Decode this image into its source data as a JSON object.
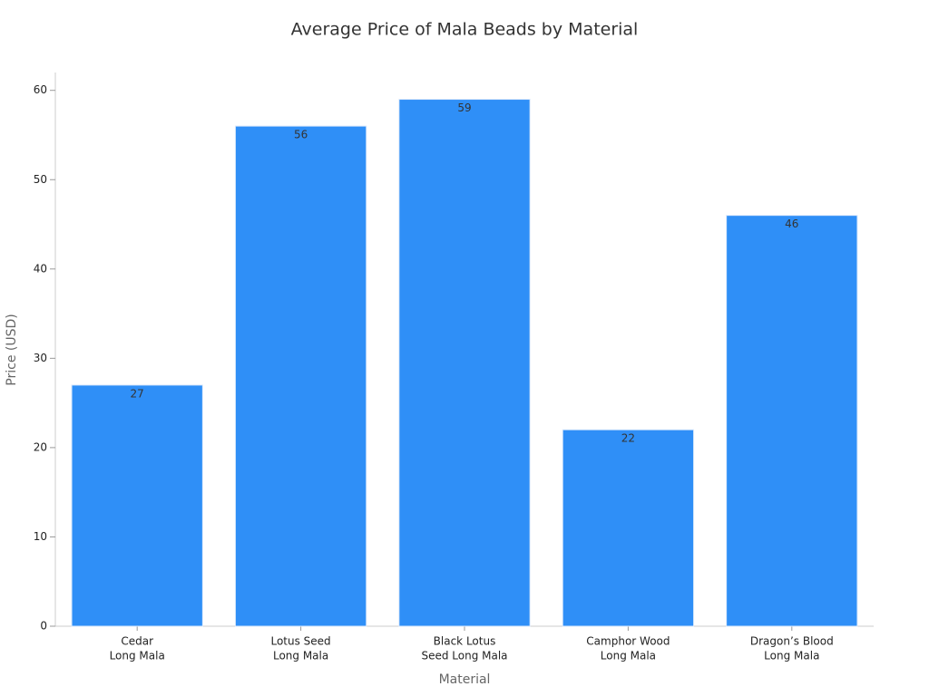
{
  "chart_data": {
    "type": "bar",
    "title": "Average Price of Mala Beads by Material",
    "x_label": "Material",
    "y_label": "Price (USD)",
    "categories": [
      [
        "Cedar",
        "Long Mala"
      ],
      [
        "Lotus Seed",
        "Long Mala"
      ],
      [
        "Black Lotus",
        "Seed Long Mala"
      ],
      [
        "Camphor Wood",
        "Long Mala"
      ],
      [
        "Dragon’s Blood",
        "Long Mala"
      ]
    ],
    "values": [
      27,
      56,
      59,
      22,
      46
    ],
    "color": "#2f8ff7",
    "ylim": [
      0,
      62
    ],
    "yticks": [
      0,
      10,
      20,
      30,
      40,
      50,
      60
    ],
    "grid": false,
    "show_value_labels": true
  }
}
